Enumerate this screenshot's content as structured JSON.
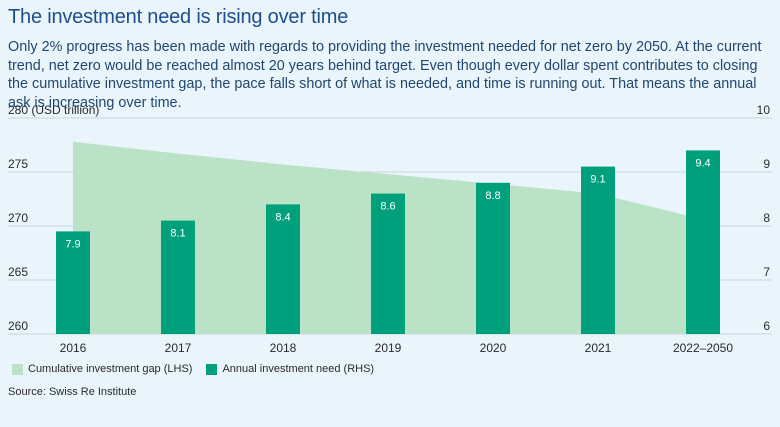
{
  "title": "The investment need is rising over time",
  "subtitle": "Only 2% progress has been made with regards to providing the investment needed for net zero by 2050. At the current trend, net zero would be reached almost 20 years behind target. Even though every dollar spent contributes to closing the cumulative investment gap, the pace falls short of what is needed, and time is running out. That means the annual ask is increasing over time.",
  "source": "Source: Swiss Re Institute",
  "colors": {
    "area": "#b9e2c6",
    "bar": "#00a07d",
    "gridline": "#c9d6de",
    "title": "#1f4e8c"
  },
  "chart_data": {
    "type": "bar",
    "categories": [
      "2016",
      "2017",
      "2018",
      "2019",
      "2020",
      "2021",
      "2022–2050"
    ],
    "left_axis": {
      "label": "280 (USD trillion)",
      "ticks": [
        "280 (USD trillion)",
        "275",
        "270",
        "265",
        "260"
      ],
      "tick_values": [
        280,
        275,
        270,
        265,
        260
      ],
      "ylim": [
        260,
        280
      ]
    },
    "right_axis": {
      "ticks": [
        "10",
        "9",
        "8",
        "7",
        "6"
      ],
      "tick_values": [
        10,
        9,
        8,
        7,
        6
      ],
      "ylim": [
        6,
        10
      ]
    },
    "series": [
      {
        "name": "Cumulative investment gap (LHS)",
        "type": "area",
        "axis": "left",
        "values": [
          277.8,
          276.7,
          275.7,
          274.8,
          273.9,
          273.0,
          270.6
        ]
      },
      {
        "name": "Annual investment need (RHS)",
        "type": "bar",
        "axis": "right",
        "values": [
          7.9,
          8.1,
          8.4,
          8.6,
          8.8,
          9.1,
          9.4
        ],
        "labels": [
          "7.9",
          "8.1",
          "8.4",
          "8.6",
          "8.8",
          "9.1",
          "9.4"
        ]
      }
    ],
    "legend_position": "bottom-left",
    "grid": true
  }
}
